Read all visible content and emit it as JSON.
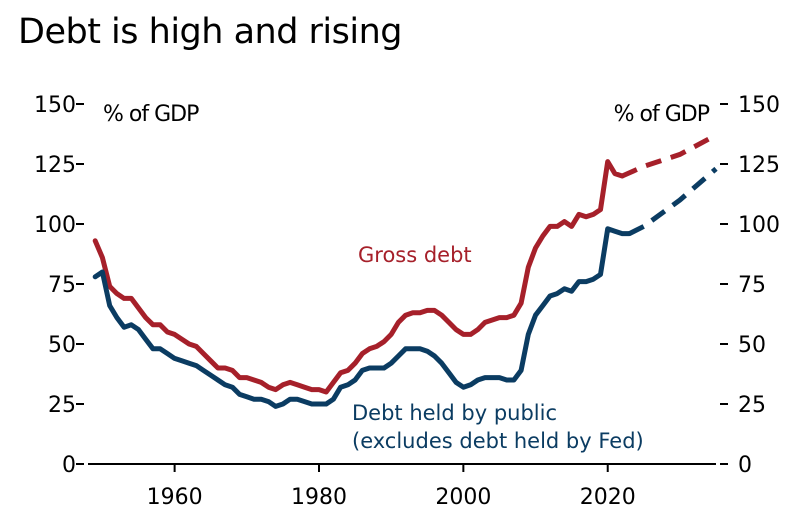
{
  "title": "Debt is high and rising",
  "colors": {
    "gross": "#a6202a",
    "public": "#0b3c62",
    "axis": "#000000"
  },
  "chart_data": {
    "type": "line",
    "title": "Debt is high and rising",
    "ylabel_left": "% of GDP",
    "ylabel_right": "% of GDP",
    "xlabel": "",
    "xlim": [
      1948,
      2035
    ],
    "ylim": [
      0,
      150
    ],
    "yticks": [
      0,
      25,
      50,
      75,
      100,
      125,
      150
    ],
    "xticks": [
      1960,
      1980,
      2000,
      2020
    ],
    "grid": false,
    "series": [
      {
        "name": "Gross debt",
        "key": "gross",
        "color": "#a6202a",
        "label": "Gross debt",
        "x": [
          1949,
          1950,
          1951,
          1952,
          1953,
          1954,
          1955,
          1956,
          1957,
          1958,
          1959,
          1960,
          1961,
          1962,
          1963,
          1964,
          1965,
          1966,
          1967,
          1968,
          1969,
          1970,
          1971,
          1972,
          1973,
          1974,
          1975,
          1976,
          1977,
          1978,
          1979,
          1980,
          1981,
          1982,
          1983,
          1984,
          1985,
          1986,
          1987,
          1988,
          1989,
          1990,
          1991,
          1992,
          1993,
          1994,
          1995,
          1996,
          1997,
          1998,
          1999,
          2000,
          2001,
          2002,
          2003,
          2004,
          2005,
          2006,
          2007,
          2008,
          2009,
          2010,
          2011,
          2012,
          2013,
          2014,
          2015,
          2016,
          2017,
          2018,
          2019,
          2020,
          2021,
          2022
        ],
        "values": [
          93,
          86,
          74,
          71,
          69,
          69,
          65,
          61,
          58,
          58,
          55,
          54,
          52,
          50,
          49,
          46,
          43,
          40,
          40,
          39,
          36,
          36,
          35,
          34,
          32,
          31,
          33,
          34,
          33,
          32,
          31,
          31,
          30,
          34,
          38,
          39,
          42,
          46,
          48,
          49,
          51,
          54,
          59,
          62,
          63,
          63,
          64,
          64,
          62,
          59,
          56,
          54,
          54,
          56,
          59,
          60,
          61,
          61,
          62,
          67,
          82,
          90,
          95,
          99,
          99,
          101,
          99,
          104,
          103,
          104,
          106,
          126,
          121,
          120
        ],
        "projection_x": [
          2022,
          2025,
          2030,
          2035
        ],
        "projection_values": [
          120,
          124,
          129,
          137
        ]
      },
      {
        "name": "Debt held by public (excludes debt held by Fed)",
        "key": "public",
        "color": "#0b3c62",
        "label_line1": "Debt held by public",
        "label_line2": "(excludes debt held by Fed)",
        "x": [
          1949,
          1950,
          1951,
          1952,
          1953,
          1954,
          1955,
          1956,
          1957,
          1958,
          1959,
          1960,
          1961,
          1962,
          1963,
          1964,
          1965,
          1966,
          1967,
          1968,
          1969,
          1970,
          1971,
          1972,
          1973,
          1974,
          1975,
          1976,
          1977,
          1978,
          1979,
          1980,
          1981,
          1982,
          1983,
          1984,
          1985,
          1986,
          1987,
          1988,
          1989,
          1990,
          1991,
          1992,
          1993,
          1994,
          1995,
          1996,
          1997,
          1998,
          1999,
          2000,
          2001,
          2002,
          2003,
          2004,
          2005,
          2006,
          2007,
          2008,
          2009,
          2010,
          2011,
          2012,
          2013,
          2014,
          2015,
          2016,
          2017,
          2018,
          2019,
          2020,
          2021,
          2022,
          2023
        ],
        "values": [
          78,
          80,
          66,
          61,
          57,
          58,
          56,
          52,
          48,
          48,
          46,
          44,
          43,
          42,
          41,
          39,
          37,
          35,
          33,
          32,
          29,
          28,
          27,
          27,
          26,
          24,
          25,
          27,
          27,
          26,
          25,
          25,
          25,
          27,
          32,
          33,
          35,
          39,
          40,
          40,
          40,
          42,
          45,
          48,
          48,
          48,
          47,
          45,
          42,
          38,
          34,
          32,
          33,
          35,
          36,
          36,
          36,
          35,
          35,
          39,
          54,
          62,
          66,
          70,
          71,
          73,
          72,
          76,
          76,
          77,
          79,
          98,
          97,
          96,
          96
        ],
        "projection_x": [
          2023,
          2025,
          2030,
          2035
        ],
        "projection_values": [
          96,
          99,
          110,
          123
        ]
      }
    ]
  }
}
